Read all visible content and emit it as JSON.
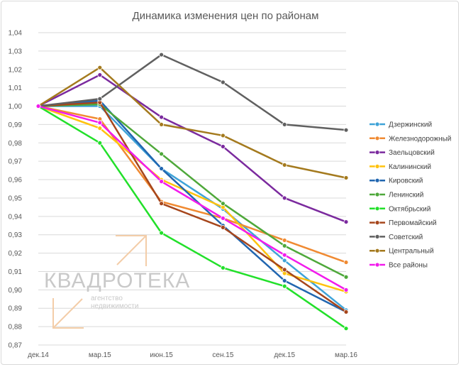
{
  "chart_data": {
    "type": "line",
    "title": "Динамика изменения цен по районам",
    "xlabel": "",
    "ylabel": "",
    "categories": [
      "дек.14",
      "мар.15",
      "июн.15",
      "сен.15",
      "дек.15",
      "мар.16"
    ],
    "ylim": [
      0.87,
      1.04
    ],
    "ytick_step": 0.01,
    "ytick_labels": [
      "0,87",
      "0,88",
      "0,89",
      "0,90",
      "0,91",
      "0,92",
      "0,93",
      "0,94",
      "0,95",
      "0,96",
      "0,97",
      "0,98",
      "0,99",
      "1,00",
      "1,01",
      "1,02",
      "1,03",
      "1,04"
    ],
    "grid": true,
    "legend_position": "right",
    "series": [
      {
        "name": "Дзержинский",
        "color": "#3FA3D8",
        "values": [
          1.0,
          1.0,
          0.966,
          0.944,
          0.916,
          0.889
        ]
      },
      {
        "name": "Железнодорожный",
        "color": "#F08A32",
        "values": [
          1.0,
          0.993,
          0.948,
          0.939,
          0.927,
          0.915
        ]
      },
      {
        "name": "Заельцовский",
        "color": "#7B2A9E",
        "values": [
          1.0,
          1.017,
          0.994,
          0.978,
          0.95,
          0.937
        ]
      },
      {
        "name": "Калининский",
        "color": "#FFC20E",
        "values": [
          1.0,
          0.988,
          0.96,
          0.945,
          0.909,
          0.899
        ]
      },
      {
        "name": "Кировский",
        "color": "#2166B0",
        "values": [
          1.0,
          1.003,
          0.966,
          0.935,
          0.905,
          0.888
        ]
      },
      {
        "name": "Ленинский",
        "color": "#4EA83A",
        "values": [
          1.0,
          1.001,
          0.974,
          0.947,
          0.924,
          0.907
        ]
      },
      {
        "name": "Октябрьский",
        "color": "#22E02A",
        "values": [
          1.0,
          0.98,
          0.931,
          0.912,
          0.902,
          0.879
        ]
      },
      {
        "name": "Первомайский",
        "color": "#A6461C",
        "values": [
          1.0,
          1.002,
          0.947,
          0.934,
          0.911,
          0.888
        ]
      },
      {
        "name": "Советский",
        "color": "#606060",
        "values": [
          1.0,
          1.004,
          1.028,
          1.013,
          0.99,
          0.987
        ]
      },
      {
        "name": "Центральный",
        "color": "#A47A1E",
        "values": [
          1.0,
          1.021,
          0.99,
          0.984,
          0.968,
          0.961
        ]
      },
      {
        "name": "Все районы",
        "color": "#F21BEC",
        "values": [
          1.0,
          0.991,
          0.959,
          0.939,
          0.919,
          0.9
        ]
      }
    ]
  },
  "watermark": {
    "brand": "КВАДРОТЕКА",
    "tagline_line1": "агентство",
    "tagline_line2": "недвижимости",
    "color": "#c9c9c9",
    "accent": "#f3cda8"
  }
}
